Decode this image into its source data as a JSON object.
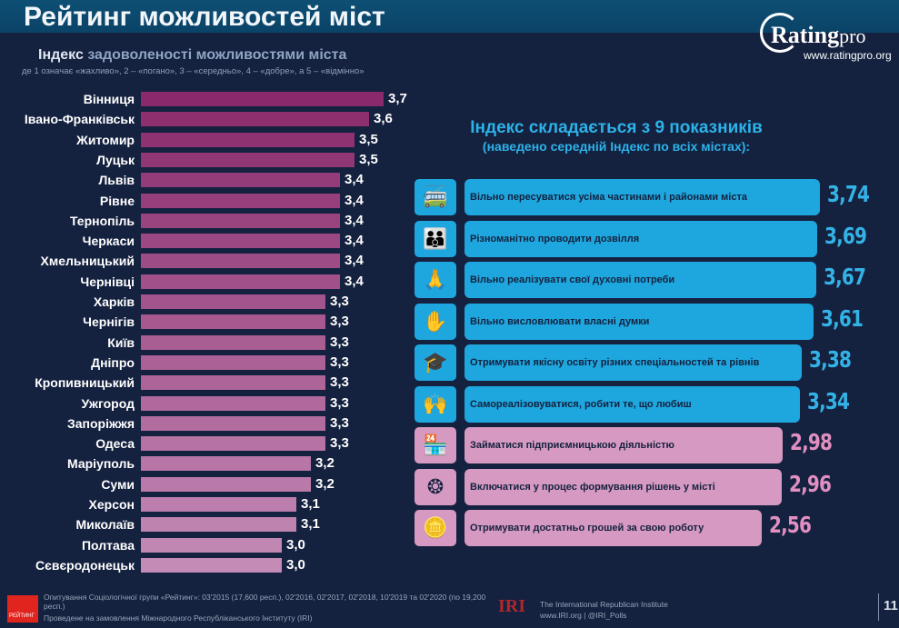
{
  "header": {
    "title": "Рейтинг можливостей міст"
  },
  "logo": {
    "name_bold": "Rating",
    "name_light": "pro",
    "url": "www.ratingpro.org"
  },
  "chart_data": [
    {
      "type": "bar",
      "orientation": "horizontal",
      "title_bold": "Індекс",
      "title": "задоволеності можливостями міста",
      "subtitle": "де 1 означає «жахливо», 2 – «погано», 3 – «середньо», 4 – «добре», а 5 – «відмінно»",
      "categories": [
        "Вінниця",
        "Івано-Франківськ",
        "Житомир",
        "Луцьк",
        "Львів",
        "Рівне",
        "Тернопіль",
        "Черкаси",
        "Хмельницький",
        "Чернівці",
        "Харків",
        "Чернігів",
        "Київ",
        "Дніпро",
        "Кропивницький",
        "Ужгород",
        "Запоріжжя",
        "Одеса",
        "Маріуполь",
        "Суми",
        "Херсон",
        "Миколаїв",
        "Полтава",
        "Сєвєродонецьк"
      ],
      "values": [
        3.7,
        3.6,
        3.5,
        3.5,
        3.4,
        3.4,
        3.4,
        3.4,
        3.4,
        3.4,
        3.3,
        3.3,
        3.3,
        3.3,
        3.3,
        3.3,
        3.3,
        3.3,
        3.2,
        3.2,
        3.1,
        3.1,
        3.0,
        3.0
      ],
      "labels": [
        "3,7",
        "3,6",
        "3,5",
        "3,5",
        "3,4",
        "3,4",
        "3,4",
        "3,4",
        "3,4",
        "3,4",
        "3,3",
        "3,3",
        "3,3",
        "3,3",
        "3,3",
        "3,3",
        "3,3",
        "3,3",
        "3,2",
        "3,2",
        "3,1",
        "3,1",
        "3,0",
        "3,0"
      ],
      "colors": {
        "high": "#8a2a6c",
        "low": "#c48bb6"
      }
    },
    {
      "type": "bar",
      "orientation": "horizontal",
      "title": "Індекс складається з 9 показників",
      "subtitle": "(наведено середній Індекс по всіх містах):",
      "categories": [
        "Вільно пересуватися усіма частинами і районами міста",
        "Різноманітно проводити дозвілля",
        "Вільно реалізувати свої духовні потреби",
        "Вільно висловлювати власні думки",
        "Отримувати якісну освіту різних спеціальностей та рівнів",
        "Самореалізовуватися, робити те, що любиш",
        "Займатися підприємницькою діяльністю",
        "Включатися у процес формування рішень у місті",
        "Отримувати достатньо грошей за свою роботу"
      ],
      "values": [
        3.74,
        3.69,
        3.67,
        3.61,
        3.38,
        3.34,
        2.98,
        2.96,
        2.56
      ],
      "labels": [
        "3,74",
        "3,69",
        "3,67",
        "3,61",
        "3,38",
        "3,34",
        "2,98",
        "2,96",
        "2,56"
      ],
      "icons": [
        "transport-icon",
        "family-icon",
        "praying-hands-icon",
        "raised-hands-icon",
        "graduation-cap-icon",
        "dancing-people-icon",
        "market-stall-icon",
        "network-people-icon",
        "coins-stack-icon"
      ],
      "colors": {
        "above3": "#1ea7de",
        "below3": "#d699c1",
        "value_above3": "#33b2e6",
        "value_below3": "#e08fc0"
      }
    }
  ],
  "footer": {
    "logo_text": "РЕЙТИНГ",
    "line1": "Опитування Соціологічної групи «Рейтинг»: 03'2015 (17,600 респ.), 02'2016, 02'2017, 02'2018, 10'2019 та 02'2020 (по 19,200 респ.)",
    "line2": "Проведене на замовлення Міжнародного Республіканського Інституту (IRI)",
    "iri_logo": "IRI",
    "iri_name": "The International Republican Institute",
    "iri_links": "www.IRI.org | @IRI_Polls",
    "page": "11"
  }
}
